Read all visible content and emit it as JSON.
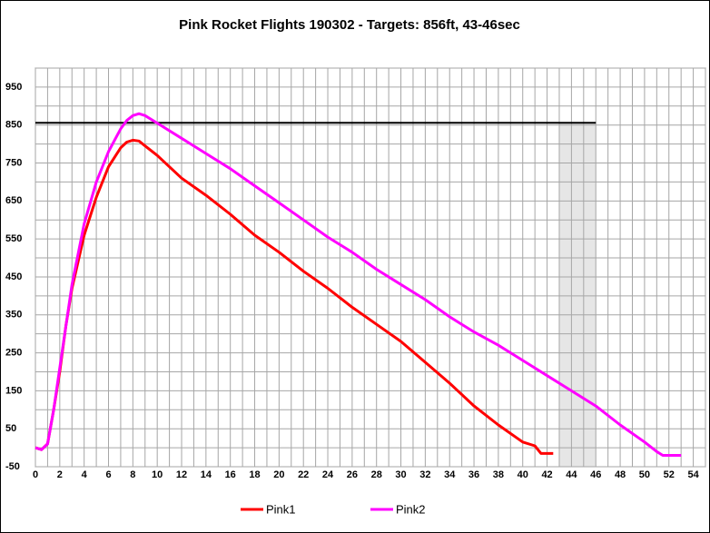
{
  "chart_data": {
    "type": "line",
    "title": "Pink Rocket Flights 190302 - Targets: 856ft, 43-46sec",
    "xlim": [
      0,
      55
    ],
    "ylim": [
      -50,
      1000
    ],
    "xticks": [
      0,
      2,
      4,
      6,
      8,
      10,
      12,
      14,
      16,
      18,
      20,
      22,
      24,
      26,
      28,
      30,
      32,
      34,
      36,
      38,
      40,
      42,
      44,
      46,
      48,
      50,
      52,
      54
    ],
    "xminor": [
      1,
      3,
      5,
      7,
      9,
      11,
      13,
      15,
      17,
      19,
      21,
      23,
      25,
      27,
      29,
      31,
      33,
      35,
      37,
      39,
      41,
      43,
      45,
      47,
      49,
      51,
      53,
      55
    ],
    "yticks": [
      -50,
      50,
      150,
      250,
      350,
      450,
      550,
      650,
      750,
      850,
      950
    ],
    "yminor": [
      0,
      100,
      200,
      300,
      400,
      500,
      600,
      700,
      800,
      900,
      1000
    ],
    "grid": true,
    "target_altitude": 856,
    "target_line_end": 46,
    "target_window": [
      43,
      46
    ],
    "series": [
      {
        "name": "Pink1",
        "color": "#ff0000",
        "x": [
          0,
          0.5,
          1,
          1.5,
          2,
          2.5,
          3,
          4,
          5,
          6,
          7,
          7.5,
          8,
          8.5,
          9,
          10,
          11,
          12,
          14,
          16,
          18,
          20,
          22,
          24,
          26,
          28,
          30,
          32,
          34,
          36,
          38,
          40,
          41,
          41.5,
          42,
          42.5
        ],
        "values": [
          0,
          -5,
          10,
          100,
          200,
          320,
          420,
          560,
          660,
          740,
          790,
          805,
          810,
          808,
          795,
          770,
          740,
          710,
          665,
          615,
          560,
          515,
          465,
          420,
          370,
          325,
          280,
          225,
          170,
          110,
          60,
          15,
          5,
          -15,
          -15,
          -15
        ]
      },
      {
        "name": "Pink2",
        "color": "#ff00ff",
        "x": [
          0,
          0.5,
          1,
          1.5,
          2,
          3,
          4,
          5,
          6,
          7,
          7.5,
          8,
          8.5,
          9,
          10,
          12,
          14,
          16,
          18,
          20,
          22,
          24,
          26,
          28,
          30,
          32,
          34,
          36,
          38,
          40,
          42,
          44,
          46,
          48,
          50,
          51,
          51.5,
          52,
          53
        ],
        "values": [
          0,
          -5,
          10,
          100,
          210,
          430,
          590,
          700,
          780,
          840,
          862,
          875,
          880,
          875,
          855,
          815,
          775,
          735,
          690,
          645,
          600,
          555,
          515,
          470,
          430,
          390,
          345,
          305,
          270,
          230,
          190,
          150,
          110,
          60,
          15,
          -10,
          -20,
          -20,
          -20
        ]
      }
    ]
  }
}
